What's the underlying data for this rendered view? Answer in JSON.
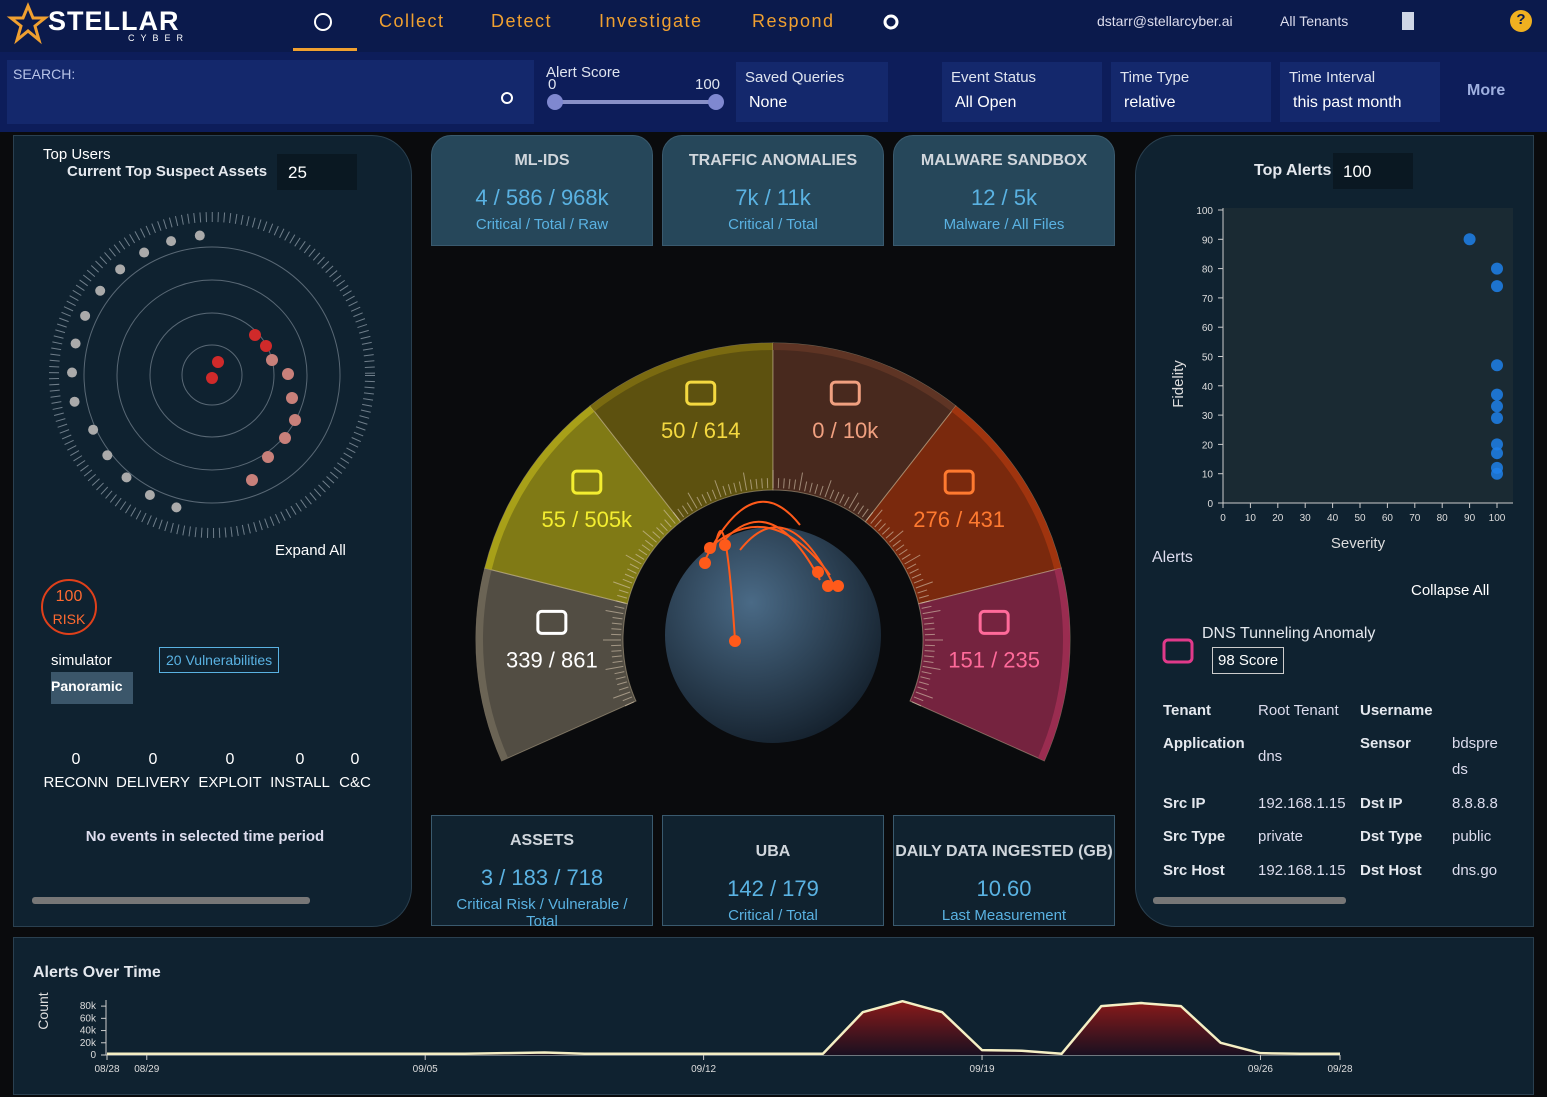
{
  "nav": {
    "logo": "STELLAR",
    "logo_sub": "CYBER",
    "menu": [
      "Collect",
      "Detect",
      "Investigate",
      "Respond"
    ],
    "user": "dstarr@stellarcyber.ai",
    "tenants": "All Tenants",
    "help": "?"
  },
  "filters": {
    "search_label": "SEARCH:",
    "alert_score": {
      "label": "Alert Score",
      "min": 0,
      "max": 100
    },
    "saved_queries": {
      "label": "Saved Queries",
      "value": "None"
    },
    "event_status": {
      "label": "Event Status",
      "value": "All Open"
    },
    "time_type": {
      "label": "Time Type",
      "value": "relative"
    },
    "time_interval": {
      "label": "Time Interval",
      "value": "this past month"
    },
    "more": "More"
  },
  "left_panel": {
    "top_users": "Top Users",
    "suspect_assets_label": "Current Top Suspect Assets",
    "suspect_assets_count": 25,
    "expand_all": "Expand All",
    "risk_score": 100,
    "risk_label": "RISK",
    "asset_name": "simulator",
    "vulnerabilities": "20 Vulnerabilities",
    "tag": "Panoramic",
    "kill_chain": [
      {
        "count": 0,
        "stage": "RECONN"
      },
      {
        "count": 0,
        "stage": "DELIVERY"
      },
      {
        "count": 0,
        "stage": "EXPLOIT"
      },
      {
        "count": 0,
        "stage": "INSTALL"
      },
      {
        "count": 0,
        "stage": "C&C"
      }
    ],
    "empty_message": "No events in selected time period"
  },
  "summary_top": [
    {
      "title": "ML-IDS",
      "value": "4 / 586 / 968k",
      "sub": "Critical / Total / Raw"
    },
    {
      "title": "TRAFFIC ANOMALIES",
      "value": "7k / 11k",
      "sub": "Critical / Total"
    },
    {
      "title": "MALWARE SANDBOX",
      "value": "12 / 5k",
      "sub": "Malware / All Files"
    }
  ],
  "gauge": [
    {
      "label": "339 / 861",
      "color": "#6b6455",
      "text_color": "#ffffff"
    },
    {
      "label": "55 / 505k",
      "color": "#a8a018",
      "text_color": "#f4ee30"
    },
    {
      "label": "50 / 614",
      "color": "#7a6a10",
      "text_color": "#f4d840"
    },
    {
      "label": "0 / 10k",
      "color": "#5e3424",
      "text_color": "#f0a080"
    },
    {
      "label": "276 / 431",
      "color": "#a0340e",
      "text_color": "#ff7a30"
    },
    {
      "label": "151 / 235",
      "color": "#9a2c50",
      "text_color": "#ff6a9a"
    }
  ],
  "summary_bottom": [
    {
      "title": "ASSETS",
      "value": "3 / 183 / 718",
      "sub": "Critical Risk / Vulnerable / Total"
    },
    {
      "title": "UBA",
      "value": "142 / 179",
      "sub": "Critical / Total"
    },
    {
      "title": "DAILY DATA INGESTED (GB)",
      "value": "10.60",
      "sub": "Last Measurement"
    }
  ],
  "right_panel": {
    "top_alerts_label": "Top Alerts",
    "top_alerts_count": 100,
    "chart_data": {
      "type": "scatter",
      "xlabel": "Severity",
      "ylabel": "Fidelity",
      "xlim": [
        0,
        100
      ],
      "ylim": [
        0,
        100
      ],
      "xticks": [
        0,
        10,
        20,
        30,
        40,
        50,
        60,
        70,
        80,
        90,
        100
      ],
      "yticks": [
        0,
        10,
        20,
        30,
        40,
        50,
        60,
        70,
        80,
        90,
        100
      ],
      "series": [
        {
          "color": "#1e80ea",
          "x": [
            90,
            100,
            100,
            100,
            100,
            100,
            100,
            100,
            100,
            100,
            100
          ],
          "y": [
            90,
            80,
            74,
            47,
            37,
            33,
            29,
            20,
            17,
            12,
            10
          ]
        }
      ]
    },
    "alerts_label": "Alerts",
    "collapse_all": "Collapse All",
    "alert": {
      "title": "DNS Tunneling Anomaly",
      "score": "98 Score",
      "left_fields": [
        {
          "label": "Tenant",
          "value": "Root Tenant"
        },
        {
          "label": "Application",
          "value": "dns"
        },
        {
          "label": "Src IP",
          "value": "192.168.1.15"
        },
        {
          "label": "Src Type",
          "value": "private"
        },
        {
          "label": "Src Host",
          "value": "192.168.1.15"
        }
      ],
      "right_fields": [
        {
          "label": "Username"
        },
        {
          "label": "Sensor",
          "value": "bdspreds"
        },
        {
          "label": "Dst IP",
          "value": "8.8.8.8"
        },
        {
          "label": "Dst Type",
          "value": "public"
        },
        {
          "label": "Dst Host",
          "value": "dns.go"
        }
      ]
    }
  },
  "alerts_over_time": {
    "title": "Alerts Over Time",
    "chart_data": {
      "type": "line",
      "ylabel": "Count",
      "ylim": [
        0,
        90000
      ],
      "yticks": [
        0,
        {
          "value": 20000,
          "label": "20k"
        },
        {
          "value": 40000,
          "label": "40k"
        },
        {
          "value": 60000,
          "label": "60k"
        },
        {
          "value": 80000,
          "label": "80k"
        }
      ],
      "categories": [
        "08/28",
        "08/29",
        null,
        null,
        null,
        null,
        null,
        null,
        "09/05",
        null,
        null,
        null,
        null,
        null,
        null,
        "09/12",
        null,
        null,
        null,
        null,
        null,
        null,
        "09/19",
        null,
        null,
        null,
        null,
        null,
        null,
        "09/26",
        null,
        "09/28"
      ],
      "series": [
        {
          "color": "#f5efc4",
          "values": [
            2000,
            2000,
            2000,
            2000,
            2000,
            2000,
            2000,
            2000,
            2000,
            2000,
            3000,
            4000,
            2000,
            2000,
            2000,
            2000,
            2000,
            2000,
            2000,
            70000,
            88000,
            70000,
            8000,
            7000,
            2000,
            80000,
            85000,
            80000,
            20000,
            3000,
            2000,
            2000
          ]
        }
      ]
    }
  }
}
